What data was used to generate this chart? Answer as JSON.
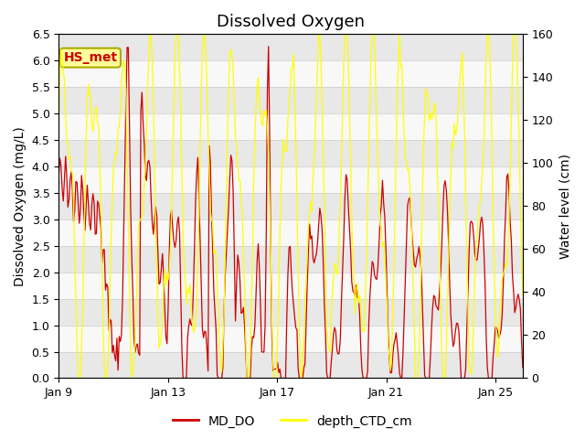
{
  "title": "Dissolved Oxygen",
  "ylabel_left": "Dissolved Oxygen (mg/L)",
  "ylabel_right": "Water level (cm)",
  "ylim_left": [
    0.0,
    6.5
  ],
  "ylim_right": [
    0,
    160
  ],
  "yticks_left": [
    0.0,
    0.5,
    1.0,
    1.5,
    2.0,
    2.5,
    3.0,
    3.5,
    4.0,
    4.5,
    5.0,
    5.5,
    6.0,
    6.5
  ],
  "yticks_right": [
    0,
    20,
    40,
    60,
    80,
    100,
    120,
    140,
    160
  ],
  "xtick_vals": [
    0,
    4,
    8,
    12,
    16
  ],
  "xtick_labels": [
    "Jan 9",
    "Jan 13",
    "Jan 17",
    "Jan 21",
    "Jan 25"
  ],
  "legend_labels": [
    "MD_DO",
    "depth_CTD_cm"
  ],
  "line_color_do": "#cc0000",
  "line_color_depth": "#ffff00",
  "background_color": "#ffffff",
  "band_color_dark": "#e0e0e0",
  "band_color_light": "#efefef",
  "annotation_text": "HS_met",
  "annotation_bg": "#ffff99",
  "annotation_border": "#aaaa00",
  "title_fontsize": 13,
  "label_fontsize": 10,
  "tick_fontsize": 9,
  "xlim": [
    0,
    17
  ]
}
